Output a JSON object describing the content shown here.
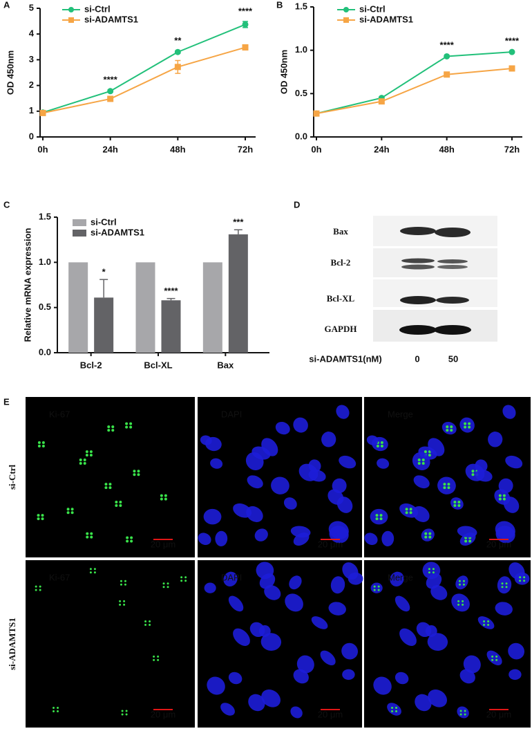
{
  "chart_data": [
    {
      "type": "line",
      "label": "A",
      "ylabel": "OD 450nm",
      "categories": [
        "0h",
        "24h",
        "48h",
        "72h"
      ],
      "series": [
        {
          "name": "si-Ctrl",
          "color": "#22c07a",
          "marker": "circle",
          "values": [
            0.95,
            1.78,
            3.3,
            4.37
          ],
          "errors": [
            0.03,
            0.05,
            0.05,
            0.12
          ]
        },
        {
          "name": "si-ADAMTS1",
          "color": "#f6a545",
          "marker": "square",
          "values": [
            0.93,
            1.48,
            2.72,
            3.48
          ],
          "errors": [
            0.03,
            0.05,
            0.25,
            0.1
          ]
        }
      ],
      "annotations": [
        null,
        "****",
        "**",
        "****"
      ],
      "ylim": [
        0,
        5
      ],
      "yticks": [
        0,
        1,
        2,
        3,
        4,
        5
      ]
    },
    {
      "type": "line",
      "label": "B",
      "ylabel": "OD 450nm",
      "categories": [
        "0h",
        "24h",
        "48h",
        "72h"
      ],
      "series": [
        {
          "name": "si-Ctrl",
          "color": "#22c07a",
          "marker": "circle",
          "values": [
            0.27,
            0.45,
            0.93,
            0.98
          ],
          "errors": [
            0.005,
            0.01,
            0.01,
            0.01
          ]
        },
        {
          "name": "si-ADAMTS1",
          "color": "#f6a545",
          "marker": "square",
          "values": [
            0.27,
            0.41,
            0.72,
            0.79
          ],
          "errors": [
            0.005,
            0.01,
            0.01,
            0.01
          ]
        }
      ],
      "annotations": [
        null,
        null,
        "****",
        "****"
      ],
      "ylim": [
        0,
        1.5
      ],
      "yticks": [
        {
          "value": 0,
          "label": "0.0"
        },
        0.5,
        {
          "value": 1,
          "label": "1.0"
        },
        1.5
      ]
    },
    {
      "type": "bar",
      "label": "C",
      "ylabel": "Relative mRNA expression",
      "categories": [
        "Bcl-2",
        "Bcl-XL",
        "Bax"
      ],
      "series": [
        {
          "name": "si-Ctrl",
          "color": "#a7a7aa",
          "values": [
            1,
            1,
            1
          ]
        },
        {
          "name": "si-ADAMTS1",
          "color": "#636366",
          "values": [
            0.61,
            0.58,
            1.31
          ],
          "errors": [
            0.2,
            0.02,
            0.05
          ]
        }
      ],
      "annotations": [
        "*",
        "****",
        "***"
      ],
      "ylim": [
        0,
        1.5
      ],
      "yticks": [
        {
          "value": 0,
          "label": "0.0"
        },
        0.5,
        {
          "value": 1,
          "label": "1.0"
        },
        1.5
      ]
    }
  ],
  "blot": {
    "label": "D",
    "rows": [
      "Bax",
      "Bcl-2",
      "Bcl-XL",
      "GAPDH"
    ],
    "treatment": "si-ADAMTS1(nM)",
    "lanes": [
      0,
      50
    ]
  },
  "microscopy": {
    "label": "E",
    "rows": [
      "si-Ctrl",
      "si-ADAMTS1"
    ],
    "channels": [
      {
        "name": "Ki-67",
        "color": "#2fcf3a"
      },
      {
        "name": "DAPI",
        "color": "#2a2ad8"
      },
      {
        "name": "Merge",
        "color": "#e01616"
      }
    ],
    "scale_bar": "20 μm"
  }
}
